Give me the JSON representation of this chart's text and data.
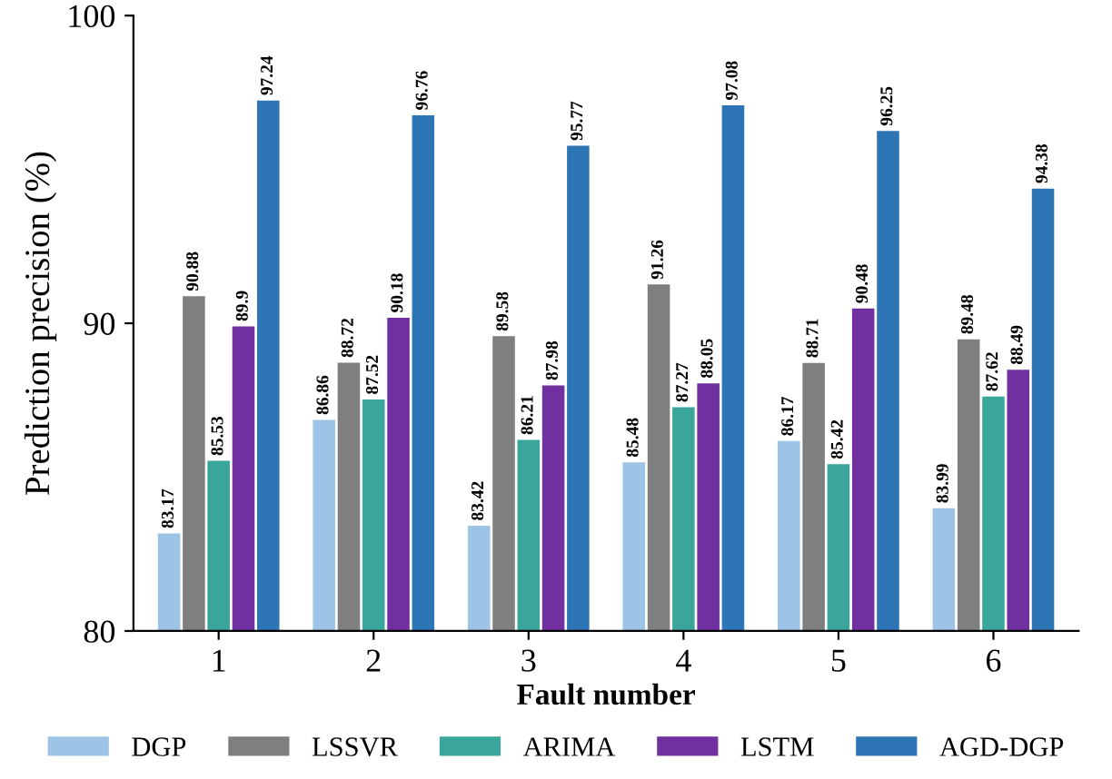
{
  "chart_data": {
    "type": "bar",
    "xlabel": "Fault number",
    "ylabel": "Prediction precision (%)",
    "categories": [
      "1",
      "2",
      "3",
      "4",
      "5",
      "6"
    ],
    "series": [
      {
        "name": "DGP",
        "color": "#9dc3e6",
        "values": [
          83.17,
          86.86,
          83.42,
          85.48,
          86.17,
          83.99
        ]
      },
      {
        "name": "LSSVR",
        "color": "#7f7f7f",
        "values": [
          90.88,
          88.72,
          89.58,
          91.26,
          88.71,
          89.48
        ]
      },
      {
        "name": "ARIMA",
        "color": "#3aa59a",
        "values": [
          85.53,
          87.52,
          86.21,
          87.27,
          85.42,
          87.62
        ]
      },
      {
        "name": "LSTM",
        "color": "#7030a0",
        "values": [
          89.9,
          90.18,
          87.98,
          88.05,
          90.48,
          88.49
        ]
      },
      {
        "name": "AGD-DGP",
        "color": "#2e75b6",
        "values": [
          97.24,
          96.76,
          95.77,
          97.08,
          96.25,
          94.38
        ]
      }
    ],
    "ylim": [
      80,
      100
    ],
    "yticks": [
      80,
      90,
      100
    ],
    "grid": false,
    "legend": "bottom",
    "data_labels": true
  }
}
